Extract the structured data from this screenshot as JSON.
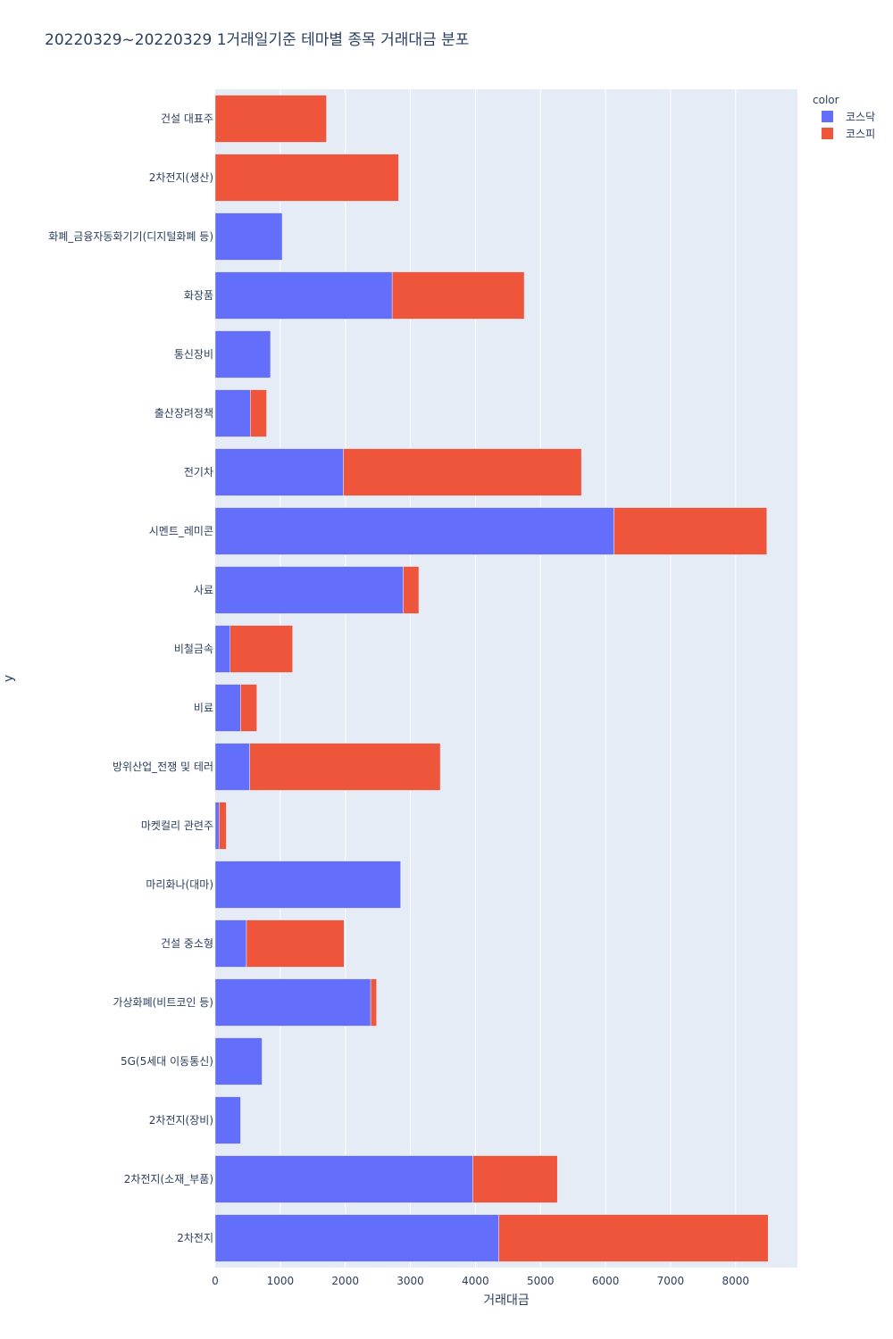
{
  "chart_data": {
    "type": "bar",
    "orientation": "horizontal",
    "barmode": "stack",
    "title": "20220329~20220329 1거래일기준 테마별 종목 거래대금 분포",
    "xlabel": "거래대금",
    "ylabel": "y",
    "xlim": [
      0,
      8950
    ],
    "xticks": [
      0,
      1000,
      2000,
      3000,
      4000,
      5000,
      6000,
      7000,
      8000
    ],
    "grid": true,
    "legend": {
      "title": "color",
      "position": "top-right"
    },
    "categories": [
      "건설 대표주",
      "2차전지(생산)",
      "화폐_금융자동화기기(디지털화폐 등)",
      "화장품",
      "통신장비",
      "출산장려정책",
      "전기차",
      "시멘트_레미콘",
      "사료",
      "비철금속",
      "비료",
      "방위산업_전쟁 및 테러",
      "마켓컬리 관련주",
      "마리화나(대마)",
      "건설 중소형",
      "가상화폐(비트코인 등)",
      "5G(5세대 이동통신)",
      "2차전지(장비)",
      "2차전지(소재_부품)",
      "2차전지"
    ],
    "series": [
      {
        "name": "코스닥",
        "color": "#636efa",
        "values": [
          0,
          0,
          1030,
          2720,
          850,
          540,
          1970,
          6130,
          2890,
          230,
          390,
          530,
          60,
          2850,
          480,
          2390,
          720,
          390,
          3960,
          4360
        ]
      },
      {
        "name": "코스피",
        "color": "#ef553b",
        "values": [
          1710,
          2820,
          0,
          2030,
          0,
          250,
          3660,
          2350,
          240,
          960,
          250,
          2930,
          110,
          0,
          1500,
          90,
          0,
          0,
          1300,
          4140
        ]
      }
    ]
  }
}
